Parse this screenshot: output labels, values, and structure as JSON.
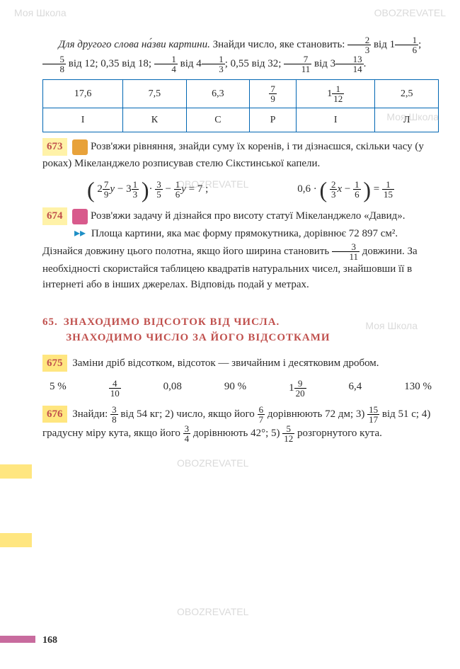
{
  "watermarks": {
    "brand1": "Моя Школа",
    "brand2": "OBOZREVATEL"
  },
  "intro": {
    "line1": "Для другого слова на́зви картини.",
    "line2_a": "Знайди число, яке становить:",
    "f1_n": "2",
    "f1_d": "3",
    "txt_vid1": "від",
    "m1_w": "1",
    "m1_n": "1",
    "m1_d": "6",
    "f2_n": "5",
    "f2_d": "8",
    "txt_vid2": "від 12; 0,35 від 18;",
    "f3_n": "1",
    "f3_d": "4",
    "txt_vid3": "від",
    "m2_w": "4",
    "m2_n": "1",
    "m2_d": "3",
    "txt_055": "; 0,55",
    "txt_vid32": "від 32;",
    "f4_n": "7",
    "f4_d": "11",
    "txt_vid4": "від",
    "m3_w": "3",
    "m3_n": "13",
    "m3_d": "14"
  },
  "table": {
    "r1": [
      "17,6",
      "7,5",
      "6,3",
      "",
      "",
      "2,5"
    ],
    "r1_frac4_n": "7",
    "r1_frac4_d": "9",
    "r1_m5_w": "1",
    "r1_m5_n": "1",
    "r1_m5_d": "12",
    "r2": [
      "І",
      "К",
      "С",
      "Р",
      "І",
      "Л"
    ]
  },
  "t673": {
    "num": "673",
    "text": "Розв'яжи рівняння, знайди суму їх коренів, і ти дізнаєшся, скільки часу (у роках) Мікеланджело розписував стелю Сікстинської капели.",
    "eq1_a_w": "2",
    "eq1_a_n": "7",
    "eq1_a_d": "9",
    "eq1_b_w": "3",
    "eq1_b_n": "1",
    "eq1_b_d": "3",
    "eq1_c_n": "3",
    "eq1_c_d": "5",
    "eq1_d_n": "1",
    "eq1_d_d": "6",
    "eq1_rhs": "= 7 ;",
    "eq2_lhs": "0,6 ·",
    "eq2_a_n": "2",
    "eq2_a_d": "3",
    "eq2_b_n": "1",
    "eq2_b_d": "6",
    "eq2_c_n": "1",
    "eq2_c_d": "15"
  },
  "t674": {
    "num": "674",
    "text1": "Розв'яжи задачу й дізнайся про висоту статуї Мікеланджело «Давид».",
    "text2a": "Площа картини, яка має форму прямокутника, дорівнює 72 897 см². Дізнайся довжину цього полотна, якщо його ширина становить",
    "f_n": "3",
    "f_d": "11",
    "text2b": "довжини. За необхідності скористайся таблицею квадратів натуральних чисел, знайшовши її в інтернеті або в інших джерелах. Відповідь подай у метрах."
  },
  "section": {
    "num": "65.",
    "line1": "ЗНАХОДИМО ВІДСОТОК ВІД ЧИСЛА.",
    "line2": "ЗНАХОДИМО ЧИСЛО ЗА ЙОГО ВІДСОТКАМИ"
  },
  "t675": {
    "num": "675",
    "text": "Заміни дріб відсотком, відсоток — звичайним і десятковим дробом.",
    "items": [
      "5 %",
      "",
      "0,08",
      "90 %",
      "",
      "6,4",
      "130 %"
    ],
    "f1_n": "4",
    "f1_d": "10",
    "m1_w": "1",
    "m1_n": "9",
    "m1_d": "20"
  },
  "t676": {
    "num": "676",
    "text_a": "Знайди:",
    "f1_n": "3",
    "f1_d": "8",
    "text_b": "від 54 кг; 2) число, якщо його",
    "f2_n": "6",
    "f2_d": "7",
    "text_c": "дорівнюють 72 дм; 3)",
    "f3_n": "15",
    "f3_d": "17",
    "text_d": "від 51 с; 4) градусну міру кута, якщо його",
    "f4_n": "3",
    "f4_d": "4",
    "text_e": "дорівнюють 42°; 5)",
    "f5_n": "5",
    "f5_d": "12",
    "text_f": "розгорнутого кута."
  },
  "page": "168"
}
